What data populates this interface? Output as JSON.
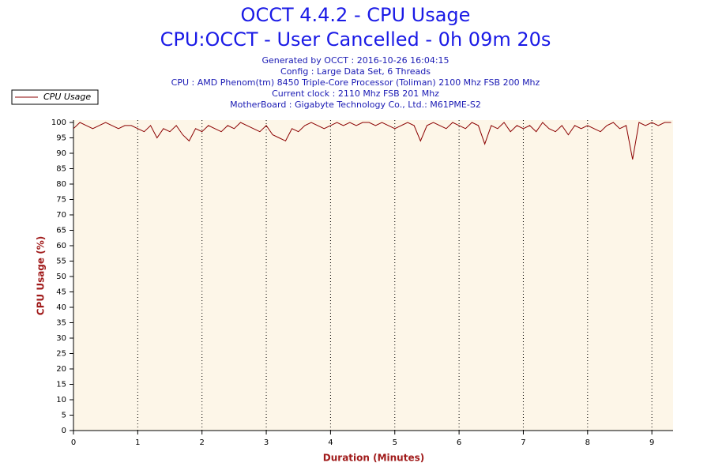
{
  "chart_data": {
    "type": "line",
    "title": "OCCT 4.4.2 - CPU Usage",
    "subtitle": "CPU:OCCT - User Cancelled - 0h 09m 20s",
    "info": [
      "Generated by OCCT : 2016-10-26 16:04:15",
      "Config : Large Data Set, 6 Threads",
      "CPU : AMD Phenom(tm) 8450 Triple-Core Processor (Toliman) 2100 Mhz FSB 200 Mhz",
      "Current clock : 2110 Mhz FSB 201 Mhz",
      "MotherBoard : Gigabyte Technology Co., Ltd.: M61PME-S2"
    ],
    "x_label": "Duration (Minutes)",
    "y_label": "CPU Usage (%)",
    "x": [
      0,
      0.1,
      0.2,
      0.3,
      0.4,
      0.5,
      0.6,
      0.7,
      0.8,
      0.9,
      1,
      1.1,
      1.2,
      1.3,
      1.4,
      1.5,
      1.6,
      1.7,
      1.8,
      1.9,
      2,
      2.1,
      2.2,
      2.3,
      2.4,
      2.5,
      2.6,
      2.7,
      2.8,
      2.9,
      3,
      3.1,
      3.2,
      3.3,
      3.4,
      3.5,
      3.6,
      3.7,
      3.8,
      3.9,
      4,
      4.1,
      4.2,
      4.3,
      4.4,
      4.5,
      4.6,
      4.7,
      4.8,
      4.9,
      5,
      5.1,
      5.2,
      5.3,
      5.4,
      5.5,
      5.6,
      5.7,
      5.8,
      5.9,
      6,
      6.1,
      6.2,
      6.3,
      6.4,
      6.5,
      6.6,
      6.7,
      6.8,
      6.9,
      7,
      7.1,
      7.2,
      7.3,
      7.4,
      7.5,
      7.6,
      7.7,
      7.8,
      7.9,
      8,
      8.1,
      8.2,
      8.3,
      8.4,
      8.5,
      8.6,
      8.7,
      8.8,
      8.9,
      9,
      9.1,
      9.2,
      9.3
    ],
    "series": [
      {
        "name": "CPU Usage",
        "color": "#8b0000",
        "values": [
          98,
          100,
          99,
          98,
          99,
          100,
          99,
          98,
          99,
          99,
          98,
          97,
          99,
          95,
          98,
          97,
          99,
          96,
          94,
          98,
          97,
          99,
          98,
          97,
          99,
          98,
          100,
          99,
          98,
          97,
          99,
          96,
          95,
          94,
          98,
          97,
          99,
          100,
          99,
          98,
          99,
          100,
          99,
          100,
          99,
          100,
          100,
          99,
          100,
          99,
          98,
          99,
          100,
          99,
          94,
          99,
          100,
          99,
          98,
          100,
          99,
          98,
          100,
          99,
          93,
          99,
          98,
          100,
          97,
          99,
          98,
          99,
          97,
          100,
          98,
          97,
          99,
          96,
          99,
          98,
          99,
          98,
          97,
          99,
          100,
          98,
          99,
          88,
          100,
          99,
          100,
          99,
          100,
          100
        ]
      }
    ],
    "xlim": [
      0,
      9.33
    ],
    "ylim": [
      0,
      100
    ],
    "xticks": [
      0,
      1,
      2,
      3,
      4,
      5,
      6,
      7,
      8,
      9
    ],
    "yticks": [
      0,
      5,
      10,
      15,
      20,
      25,
      30,
      35,
      40,
      45,
      50,
      55,
      60,
      65,
      70,
      75,
      80,
      85,
      90,
      95,
      100
    ],
    "grid": true,
    "legend": "top-left",
    "background": "#fdf6e8"
  }
}
